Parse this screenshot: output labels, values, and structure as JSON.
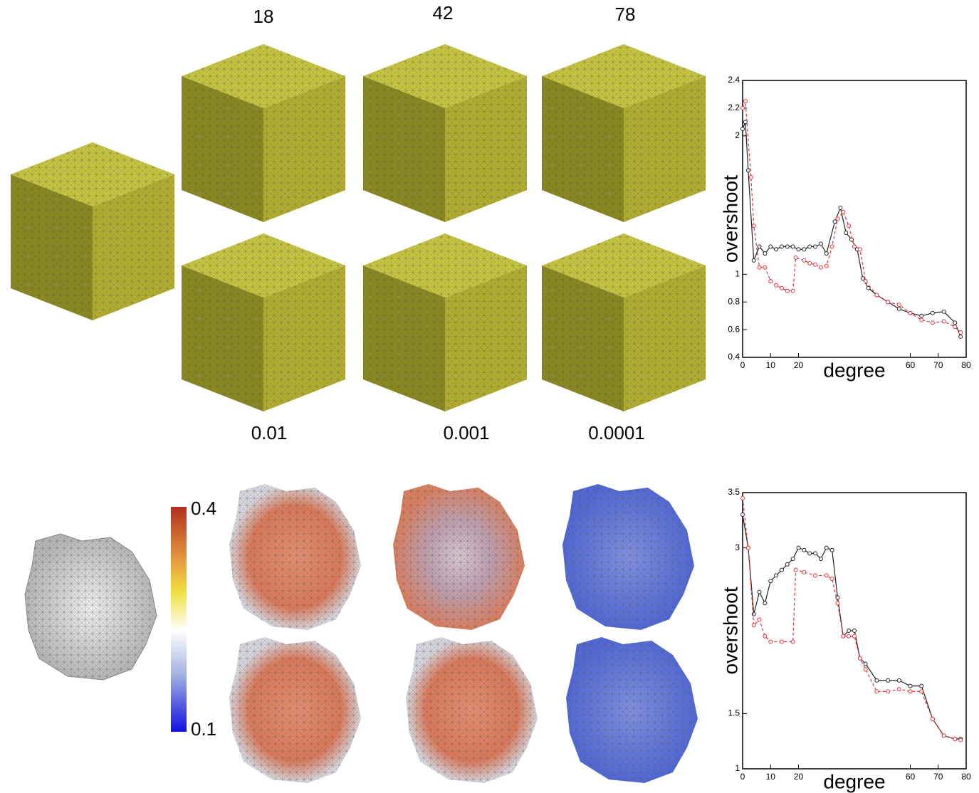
{
  "column_labels": [
    "18",
    "42",
    "78"
  ],
  "row_labels": [
    "0.01",
    "0.001",
    "0.0001"
  ],
  "colorbar": {
    "max": "0.4",
    "min": "0.1"
  },
  "chart_data": [
    {
      "type": "line",
      "xlabel": "degree",
      "ylabel": "overshoot",
      "xlim": [
        0,
        80
      ],
      "ylim": [
        0.4,
        2.4
      ],
      "xticks": [
        0,
        10,
        20,
        60,
        70,
        80
      ],
      "yticks": [
        0.4,
        0.6,
        0.8,
        1,
        2,
        2.2,
        2.4
      ],
      "series": [
        {
          "color": "#222222",
          "linestyle": "solid",
          "x": [
            0,
            1,
            2,
            4,
            6,
            8,
            10,
            12,
            14,
            16,
            18,
            20,
            22,
            24,
            26,
            28,
            30,
            33,
            35,
            37,
            39,
            41,
            43,
            45,
            48,
            52,
            56,
            60,
            64,
            68,
            72,
            76,
            78
          ],
          "values": [
            2.05,
            2.1,
            1.75,
            1.1,
            1.2,
            1.15,
            1.2,
            1.18,
            1.2,
            1.2,
            1.2,
            1.18,
            1.18,
            1.2,
            1.2,
            1.22,
            1.15,
            1.38,
            1.48,
            1.3,
            1.25,
            1.18,
            0.97,
            0.9,
            0.85,
            0.8,
            0.75,
            0.72,
            0.7,
            0.72,
            0.73,
            0.65,
            0.55
          ]
        },
        {
          "color": "#e0303a",
          "linestyle": "dashed",
          "x": [
            0,
            1,
            3,
            4,
            6,
            8,
            10,
            12,
            14,
            16,
            18,
            19,
            22,
            24,
            26,
            28,
            30,
            32,
            34,
            36,
            38,
            40,
            42,
            44,
            48,
            52,
            56,
            60,
            64,
            68,
            72,
            76,
            78
          ],
          "values": [
            2.2,
            2.25,
            1.7,
            1.35,
            1.05,
            1.05,
            0.95,
            0.92,
            0.9,
            0.88,
            0.88,
            1.12,
            1.1,
            1.08,
            1.07,
            1.05,
            1.06,
            1.2,
            1.4,
            1.45,
            1.35,
            1.2,
            1.18,
            0.95,
            0.85,
            0.8,
            0.78,
            0.72,
            0.67,
            0.65,
            0.66,
            0.62,
            0.58
          ]
        }
      ]
    },
    {
      "type": "line",
      "xlabel": "degree",
      "ylabel": "overshoot",
      "xlim": [
        0,
        80
      ],
      "ylim": [
        1,
        3.5
      ],
      "xticks": [
        0,
        10,
        20,
        60,
        70,
        80
      ],
      "yticks": [
        1,
        1.5,
        3,
        3.5
      ],
      "series": [
        {
          "color": "#222222",
          "linestyle": "solid",
          "x": [
            0,
            2,
            4,
            6,
            8,
            10,
            12,
            14,
            16,
            18,
            20,
            22,
            24,
            26,
            28,
            30,
            32,
            34,
            36,
            38,
            40,
            42,
            44,
            48,
            52,
            56,
            60,
            64,
            68,
            72,
            76,
            78
          ],
          "values": [
            3.3,
            3.0,
            2.4,
            2.6,
            2.5,
            2.7,
            2.75,
            2.8,
            2.85,
            2.9,
            3.0,
            2.98,
            2.95,
            2.95,
            2.9,
            3.0,
            2.98,
            2.55,
            2.2,
            2.25,
            2.25,
            2.0,
            1.95,
            1.8,
            1.8,
            1.8,
            1.75,
            1.75,
            1.45,
            1.3,
            1.27,
            1.27
          ]
        },
        {
          "color": "#e0303a",
          "linestyle": "dashed",
          "x": [
            0,
            2,
            4,
            6,
            8,
            10,
            14,
            18,
            19,
            22,
            26,
            30,
            32,
            34,
            36,
            38,
            40,
            42,
            44,
            48,
            52,
            56,
            60,
            64,
            68,
            72,
            76,
            78
          ],
          "values": [
            3.45,
            3.0,
            2.3,
            2.35,
            2.2,
            2.15,
            2.15,
            2.15,
            2.8,
            2.78,
            2.75,
            2.75,
            2.72,
            2.5,
            2.2,
            2.2,
            2.2,
            2.0,
            1.9,
            1.7,
            1.7,
            1.72,
            1.7,
            1.7,
            1.45,
            1.3,
            1.27,
            1.26
          ]
        }
      ]
    }
  ]
}
